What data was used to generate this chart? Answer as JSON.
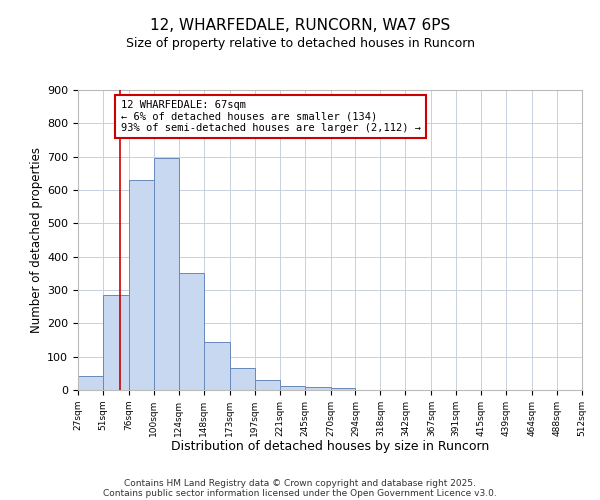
{
  "title": "12, WHARFEDALE, RUNCORN, WA7 6PS",
  "subtitle": "Size of property relative to detached houses in Runcorn",
  "xlabel": "Distribution of detached houses by size in Runcorn",
  "ylabel": "Number of detached properties",
  "bar_color": "#c8d8f0",
  "bar_edge_color": "#6688bb",
  "background_color": "#ffffff",
  "grid_color": "#c8d0e0",
  "annotation_box_color": "#cc0000",
  "annotation_line1": "12 WHARFEDALE: 67sqm",
  "annotation_line2": "← 6% of detached houses are smaller (134)",
  "annotation_line3": "93% of semi-detached houses are larger (2,112) →",
  "vline_x": 67,
  "vline_color": "#cc0000",
  "bin_edges": [
    27,
    51,
    76,
    100,
    124,
    148,
    173,
    197,
    221,
    245,
    270,
    294,
    318,
    342,
    367,
    391,
    415,
    439,
    464,
    488,
    512
  ],
  "bin_counts": [
    42,
    285,
    630,
    695,
    350,
    145,
    65,
    30,
    12,
    10,
    5,
    0,
    0,
    0,
    1,
    0,
    0,
    0,
    0,
    0
  ],
  "xlim_left": 27,
  "xlim_right": 512,
  "ylim_top": 900,
  "ylim_bottom": 0,
  "yticks": [
    0,
    100,
    200,
    300,
    400,
    500,
    600,
    700,
    800,
    900
  ],
  "footer1": "Contains HM Land Registry data © Crown copyright and database right 2025.",
  "footer2": "Contains public sector information licensed under the Open Government Licence v3.0."
}
